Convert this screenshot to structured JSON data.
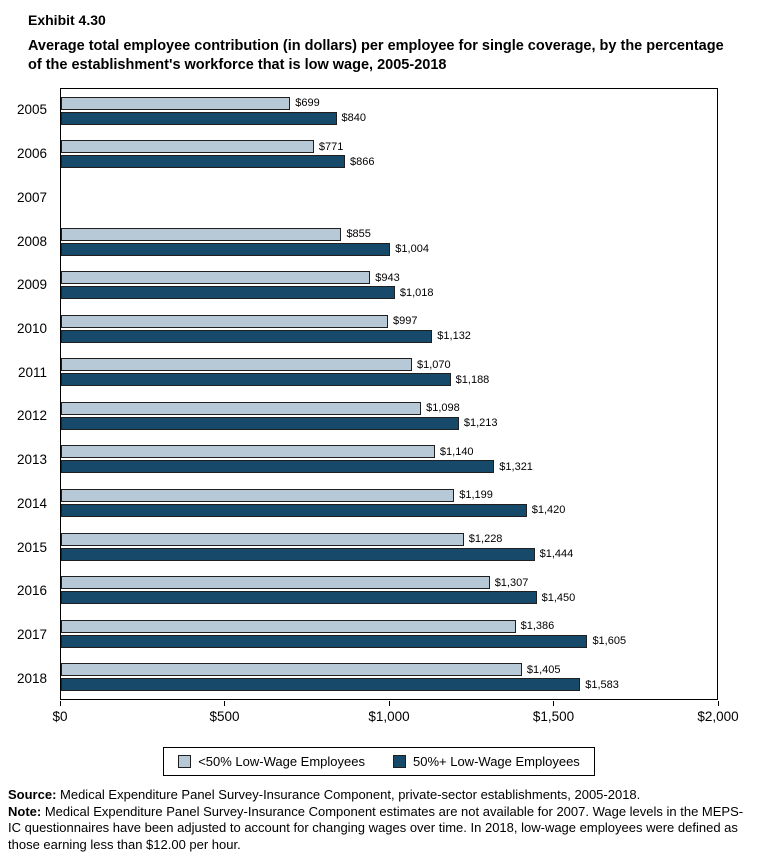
{
  "header": {
    "exhibit": "Exhibit 4.30",
    "title": "Average total employee contribution (in dollars) per employee for single coverage, by the percentage of the establishment's workforce that is low wage, 2005-2018"
  },
  "chart_data": {
    "type": "bar",
    "orientation": "horizontal",
    "title": "Average total employee contribution (in dollars) per employee for single coverage, by the percentage of the establishment's workforce that is low wage, 2005-2018",
    "categories": [
      "2005",
      "2006",
      "2007",
      "2008",
      "2009",
      "2010",
      "2011",
      "2012",
      "2013",
      "2014",
      "2015",
      "2016",
      "2017",
      "2018"
    ],
    "series": [
      {
        "name": "<50% Low-Wage Employees",
        "color": "#b7c8d6",
        "values": [
          699,
          771,
          null,
          855,
          943,
          997,
          1070,
          1098,
          1140,
          1199,
          1228,
          1307,
          1386,
          1405
        ],
        "labels": [
          "$699",
          "$771",
          null,
          "$855",
          "$943",
          "$997",
          "$1,070",
          "$1,098",
          "$1,140",
          "$1,199",
          "$1,228",
          "$1,307",
          "$1,386",
          "$1,405"
        ]
      },
      {
        "name": "50%+ Low-Wage Employees",
        "color": "#17496b",
        "values": [
          840,
          866,
          null,
          1004,
          1018,
          1132,
          1188,
          1213,
          1321,
          1420,
          1444,
          1450,
          1605,
          1583
        ],
        "labels": [
          "$840",
          "$866",
          null,
          "$1,004",
          "$1,018",
          "$1,132",
          "$1,188",
          "$1,213",
          "$1,321",
          "$1,420",
          "$1,444",
          "$1,450",
          "$1,605",
          "$1,583"
        ]
      }
    ],
    "xlim": [
      0,
      2000
    ],
    "x_ticks": [
      "$0",
      "$500",
      "$1,000",
      "$1,500",
      "$2,000"
    ],
    "x_tick_values": [
      0,
      500,
      1000,
      1500,
      2000
    ],
    "xlabel": "",
    "ylabel": "",
    "grid": false,
    "legend_position": "bottom",
    "missing_data_note": "2007 estimates not available"
  },
  "footer": {
    "source_label": "Source:",
    "source_text": " Medical Expenditure Panel Survey-Insurance Component, private-sector establishments, 2005-2018.",
    "note_label": "Note:",
    "note_text": " Medical Expenditure Panel Survey-Insurance Component estimates are not available for 2007. Wage levels in the MEPS-IC questionnaires have been adjusted to account for changing wages over time. In 2018, low-wage employees were defined as those earning less than $12.00 per hour."
  }
}
